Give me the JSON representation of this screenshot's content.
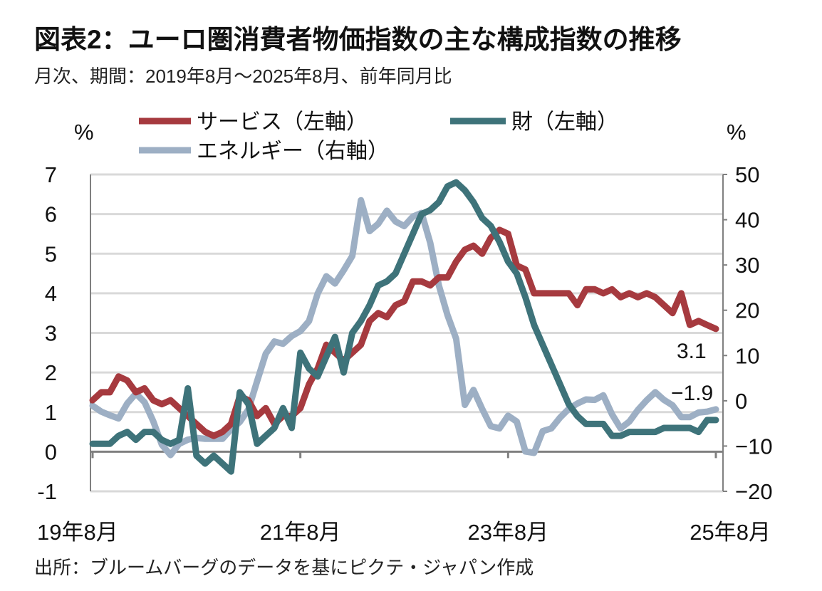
{
  "title": "図表2：ユーロ圏消費者物価指数の主な構成指数の推移",
  "subtitle": "月次、期間：2019年8月～2025年8月、前年同月比",
  "source": "出所：ブルームバーグのデータを基にピクテ・ジャパン作成",
  "chart_data": {
    "type": "line",
    "title": "図表2：ユーロ圏消費者物価指数の主な構成指数の推移",
    "left_unit": "%",
    "right_unit": "%",
    "ylim_left": [
      -1,
      7
    ],
    "yticks_left": [
      "-1",
      "0",
      "1",
      "2",
      "3",
      "4",
      "5",
      "6",
      "7"
    ],
    "ylim_right": [
      -20,
      50
    ],
    "yticks_right": [
      "−20",
      "−10",
      "0",
      "10",
      "20",
      "30",
      "40",
      "50"
    ],
    "x_start": "2019-08",
    "x_end": "2025-08",
    "xtick_labels": [
      "19年8月",
      "21年8月",
      "23年8月",
      "25年8月"
    ],
    "xtick_month_index": [
      0,
      24,
      48,
      72
    ],
    "grid": true,
    "legend_placement": "top",
    "series": [
      {
        "name": "サービス（左軸）",
        "axis": "left",
        "color": "#A63A3F",
        "values": [
          1.3,
          1.5,
          1.5,
          1.9,
          1.8,
          1.5,
          1.6,
          1.3,
          1.2,
          1.3,
          1.1,
          0.9,
          0.7,
          0.5,
          0.4,
          0.5,
          0.7,
          1.4,
          1.3,
          0.9,
          1.1,
          0.7,
          0.9,
          0.9,
          1.1,
          1.7,
          2.1,
          2.7,
          2.5,
          2.3,
          2.5,
          2.7,
          3.3,
          3.5,
          3.4,
          3.7,
          3.8,
          4.3,
          4.3,
          4.2,
          4.4,
          4.4,
          4.8,
          5.1,
          5.2,
          5.0,
          5.4,
          5.6,
          5.5,
          4.7,
          4.6,
          4.0,
          4.0,
          4.0,
          4.0,
          4.0,
          3.7,
          4.1,
          4.1,
          4.0,
          4.1,
          3.9,
          4.0,
          3.9,
          4.0,
          3.9,
          3.7,
          3.5,
          4.0,
          3.2,
          3.3,
          3.2,
          3.1
        ]
      },
      {
        "name": "財（左軸）",
        "axis": "left",
        "color": "#3E737A",
        "values": [
          0.2,
          0.2,
          0.2,
          0.4,
          0.5,
          0.3,
          0.5,
          0.5,
          0.3,
          0.2,
          0.3,
          1.6,
          -0.1,
          -0.3,
          -0.1,
          -0.3,
          -0.5,
          1.5,
          1.2,
          0.2,
          0.4,
          0.6,
          1.1,
          0.6,
          2.5,
          2.1,
          1.9,
          2.4,
          2.9,
          2.0,
          3.0,
          3.3,
          3.7,
          4.2,
          4.3,
          4.5,
          5.0,
          5.5,
          6.0,
          6.1,
          6.3,
          6.7,
          6.8,
          6.6,
          6.3,
          5.9,
          5.7,
          5.3,
          4.8,
          4.5,
          3.9,
          3.2,
          2.7,
          2.2,
          1.7,
          1.2,
          0.9,
          0.7,
          0.7,
          0.7,
          0.4,
          0.4,
          0.5,
          0.5,
          0.5,
          0.5,
          0.6,
          0.6,
          0.6,
          0.6,
          0.5,
          0.8,
          0.8
        ]
      },
      {
        "name": "エネルギー（右軸）",
        "axis": "right",
        "color": "#9DAFC4",
        "values": [
          -1.1,
          -2.4,
          -3.2,
          -3.9,
          -0.6,
          1.6,
          -0.3,
          -4.5,
          -9.7,
          -12.0,
          -9.5,
          -8.6,
          -8.2,
          -8.4,
          -8.4,
          -8.4,
          -6.3,
          -4.7,
          -1.9,
          4.3,
          10.4,
          13.1,
          12.6,
          14.3,
          15.4,
          17.6,
          23.7,
          27.5,
          25.9,
          28.8,
          32.0,
          44.3,
          37.5,
          39.1,
          42.0,
          39.6,
          38.6,
          40.7,
          41.5,
          34.9,
          25.5,
          18.9,
          13.7,
          -0.9,
          2.4,
          -1.8,
          -5.6,
          -6.1,
          -3.3,
          -4.6,
          -11.2,
          -11.5,
          -6.7,
          -6.1,
          -3.7,
          -1.8,
          -0.6,
          0.3,
          0.2,
          1.2,
          -3.0,
          -6.1,
          -4.6,
          -2.0,
          0.1,
          1.9,
          0.2,
          -1.0,
          -3.6,
          -3.6,
          -2.6,
          -2.4,
          -1.9
        ]
      }
    ],
    "annotations": [
      "3.1",
      "−1.9"
    ]
  }
}
